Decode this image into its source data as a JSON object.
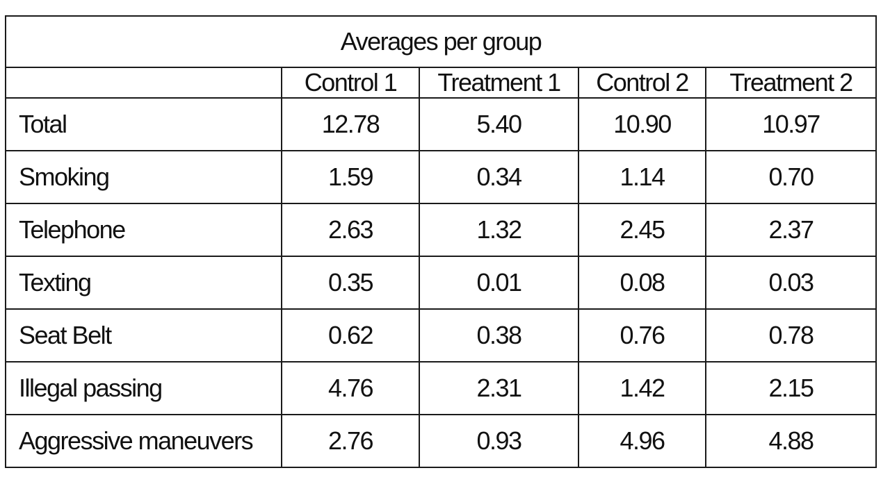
{
  "chart_data": {
    "type": "table",
    "title": "Averages per group",
    "columns": [
      "Control 1",
      "Treatment 1",
      "Control 2",
      "Treatment 2"
    ],
    "rows": [
      {
        "label": "Total",
        "values": [
          "12.78",
          "5.40",
          "10.90",
          "10.97"
        ]
      },
      {
        "label": "Smoking",
        "values": [
          "1.59",
          "0.34",
          "1.14",
          "0.70"
        ]
      },
      {
        "label": "Telephone",
        "values": [
          "2.63",
          "1.32",
          "2.45",
          "2.37"
        ]
      },
      {
        "label": "Texting",
        "values": [
          "0.35",
          "0.01",
          "0.08",
          "0.03"
        ]
      },
      {
        "label": "Seat Belt",
        "values": [
          "0.62",
          "0.38",
          "0.76",
          "0.78"
        ]
      },
      {
        "label": "Illegal passing",
        "values": [
          "4.76",
          "2.31",
          "1.42",
          "2.15"
        ]
      },
      {
        "label": "Aggressive maneuvers",
        "values": [
          "2.76",
          "0.93",
          "4.96",
          "4.88"
        ]
      }
    ]
  }
}
